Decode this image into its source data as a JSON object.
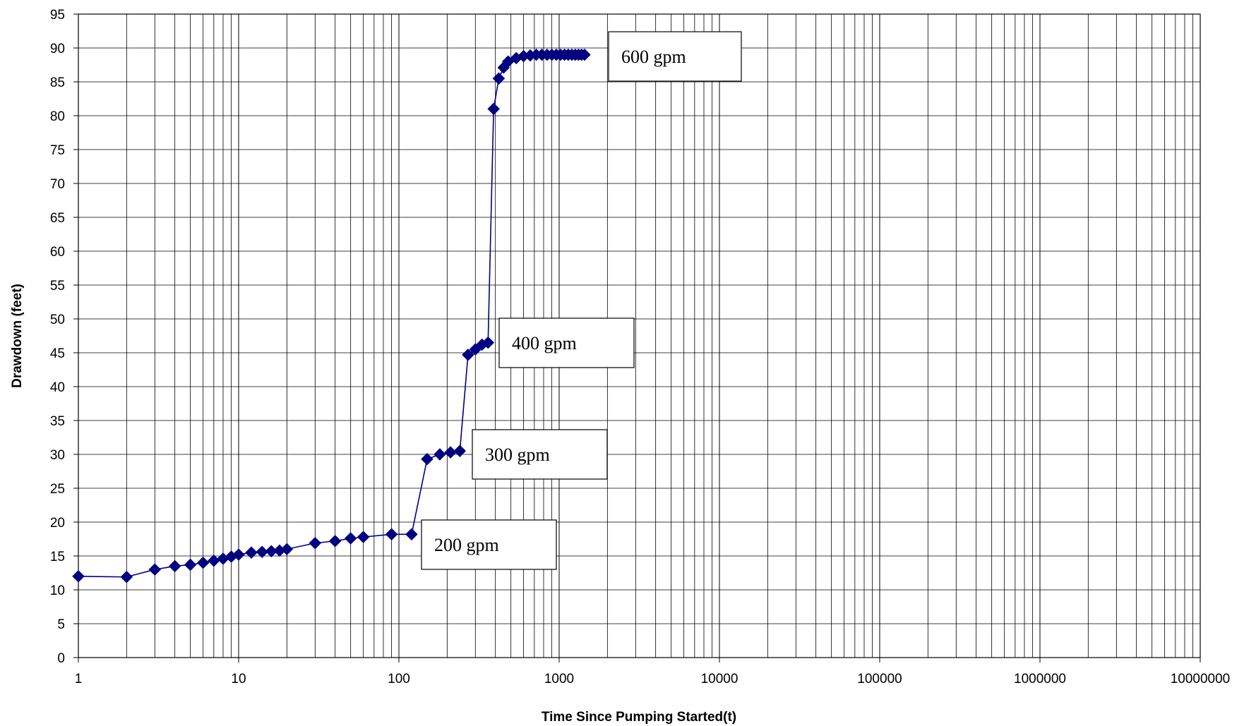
{
  "chart_data": {
    "type": "line",
    "xlabel": "Time Since Pumping Started(t)",
    "ylabel": "Drawdown (feet)",
    "x_scale": "log",
    "xlim": [
      1,
      10000000
    ],
    "ylim": [
      0,
      95
    ],
    "grid": true,
    "legend": "none",
    "x_tick_labels": [
      "1",
      "10",
      "100",
      "1000",
      "10000",
      "100000",
      "1000000",
      "10000000"
    ],
    "y_tick_labels": [
      "0",
      "5",
      "10",
      "15",
      "20",
      "25",
      "30",
      "35",
      "40",
      "45",
      "50",
      "55",
      "60",
      "65",
      "70",
      "75",
      "80",
      "85",
      "90",
      "95"
    ],
    "series": [
      {
        "color": "#000080",
        "marker": "diamond",
        "points": [
          [
            1,
            12.0
          ],
          [
            2,
            11.9
          ],
          [
            3,
            13.0
          ],
          [
            4,
            13.5
          ],
          [
            5,
            13.7
          ],
          [
            6,
            14.0
          ],
          [
            7,
            14.3
          ],
          [
            8,
            14.6
          ],
          [
            9,
            14.9
          ],
          [
            10,
            15.2
          ],
          [
            12,
            15.5
          ],
          [
            14,
            15.6
          ],
          [
            16,
            15.7
          ],
          [
            18,
            15.8
          ],
          [
            20,
            16.0
          ],
          [
            30,
            16.9
          ],
          [
            40,
            17.2
          ],
          [
            50,
            17.6
          ],
          [
            60,
            17.8
          ],
          [
            90,
            18.2
          ],
          [
            120,
            18.2
          ],
          [
            150,
            29.3
          ],
          [
            180,
            30.0
          ],
          [
            210,
            30.3
          ],
          [
            240,
            30.5
          ],
          [
            270,
            44.7
          ],
          [
            300,
            45.5
          ],
          [
            330,
            46.2
          ],
          [
            360,
            46.5
          ],
          [
            390,
            81.0
          ],
          [
            420,
            85.5
          ],
          [
            450,
            87.1
          ],
          [
            480,
            88.0
          ],
          [
            540,
            88.5
          ],
          [
            600,
            88.8
          ],
          [
            660,
            88.9
          ],
          [
            720,
            89.0
          ],
          [
            780,
            89.0
          ],
          [
            840,
            89.0
          ],
          [
            900,
            89.0
          ],
          [
            960,
            89.0
          ],
          [
            1020,
            89.0
          ],
          [
            1080,
            89.0
          ],
          [
            1140,
            89.0
          ],
          [
            1200,
            89.0
          ],
          [
            1260,
            89.0
          ],
          [
            1320,
            89.0
          ],
          [
            1380,
            89.0
          ],
          [
            1440,
            89.0
          ]
        ]
      }
    ],
    "annotations": [
      {
        "text": "200 gpm"
      },
      {
        "text": "300 gpm"
      },
      {
        "text": "400 gpm"
      },
      {
        "text": "600 gpm"
      }
    ]
  }
}
